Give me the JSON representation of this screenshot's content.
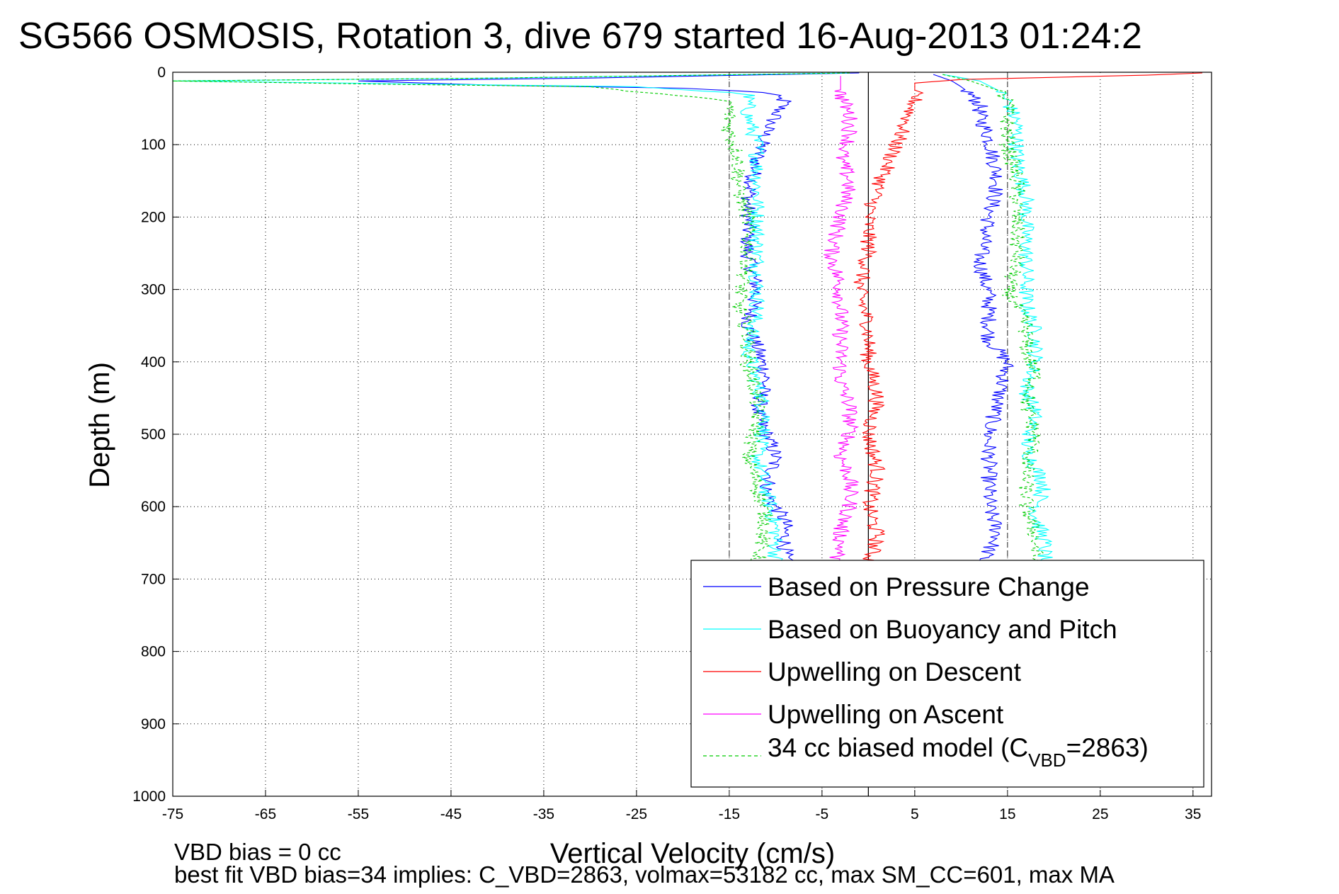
{
  "chart_data": {
    "type": "line",
    "title": "SG566 OSMOSIS, Rotation 3, dive 679 started 16-Aug-2013 01:24:2",
    "xlabel": "Vertical Velocity (cm/s)",
    "ylabel": "Depth (m)",
    "xlim": [
      -75,
      37
    ],
    "ylim": [
      0,
      1000
    ],
    "y_reversed": true,
    "grid": true,
    "x_ticks": [
      "-75",
      "-65",
      "-55",
      "-45",
      "-35",
      "-25",
      "-15",
      "-5",
      "5",
      "15",
      "25",
      "35"
    ],
    "y_ticks": [
      "0",
      "100",
      "200",
      "300",
      "400",
      "500",
      "600",
      "700",
      "800",
      "900",
      "1000"
    ],
    "reference_lines": [
      {
        "x": -15,
        "style": "dashed",
        "color": "#555555"
      },
      {
        "x": 0,
        "style": "solid",
        "color": "#000000"
      },
      {
        "x": 15,
        "style": "dashed",
        "color": "#555555"
      }
    ],
    "legend_position": "bottom-right",
    "series": [
      {
        "name": "Based on Pressure Change",
        "color": "#0000ff",
        "style": "solid",
        "branches": [
          {
            "x": [
              -1,
              -30,
              -55,
              -40,
              -20,
              -11,
              -9,
              -11,
              -12,
              -13,
              -13,
              -12,
              -13,
              -12,
              -11,
              -12,
              -10,
              -11,
              -9,
              -9,
              -9
            ],
            "y": [
              1,
              8,
              12,
              18,
              22,
              28,
              40,
              80,
              120,
              180,
              250,
              300,
              350,
              380,
              420,
              470,
              530,
              580,
              620,
              660,
              680
            ]
          },
          {
            "x": [
              7,
              9,
              10,
              11,
              12,
              12,
              13,
              14,
              13,
              12,
              13,
              13,
              15,
              14,
              13,
              13,
              13,
              13,
              14,
              12
            ],
            "y": [
              3,
              12,
              20,
              30,
              45,
              60,
              90,
              150,
              200,
              260,
              310,
              370,
              400,
              450,
              500,
              530,
              560,
              600,
              640,
              680
            ]
          }
        ]
      },
      {
        "name": "Based on Buoyancy and Pitch",
        "color": "#00ffff",
        "style": "solid",
        "branches": [
          {
            "x": [
              -2,
              -40,
              -75,
              -50,
              -25,
              -13,
              -13,
              -12,
              -12,
              -12,
              -12,
              -13,
              -12,
              -11,
              -12,
              -11,
              -10,
              -10
            ],
            "y": [
              1,
              8,
              12,
              16,
              20,
              30,
              60,
              100,
              170,
              250,
              330,
              380,
              430,
              480,
              530,
              580,
              630,
              680
            ]
          },
          {
            "x": [
              8,
              12,
              14,
              15,
              16,
              16,
              17,
              17,
              17,
              17,
              18,
              18,
              17,
              18,
              17,
              19,
              18,
              19,
              19
            ],
            "y": [
              3,
              12,
              25,
              40,
              70,
              120,
              170,
              220,
              270,
              320,
              360,
              400,
              440,
              470,
              520,
              570,
              610,
              650,
              680
            ]
          }
        ]
      },
      {
        "name": "Upwelling on Descent",
        "color": "#ff0000",
        "style": "solid",
        "branches": [
          {
            "x": [
              36,
              30,
              20,
              10,
              5,
              5,
              4,
              3,
              2,
              1,
              0,
              0,
              -1,
              0,
              0,
              1,
              0,
              1,
              0,
              1,
              0
            ],
            "y": [
              1,
              4,
              7,
              10,
              15,
              40,
              70,
              100,
              130,
              160,
              200,
              250,
              300,
              350,
              400,
              450,
              500,
              550,
              600,
              640,
              680
            ]
          }
        ]
      },
      {
        "name": "Upwelling on Ascent",
        "color": "#ff00ff",
        "style": "solid",
        "branches": [
          {
            "x": [
              -3,
              -3,
              -2,
              -2,
              -3,
              -2,
              -3,
              -4,
              -3,
              -3,
              -3,
              -3,
              -2,
              -2,
              -3,
              -2,
              -2,
              -3,
              -3,
              -4
            ],
            "y": [
              5,
              30,
              60,
              90,
              120,
              150,
              200,
              250,
              300,
              350,
              400,
              430,
              460,
              500,
              530,
              560,
              600,
              630,
              660,
              680
            ]
          }
        ]
      },
      {
        "name": "34 cc biased model",
        "color": "#00cc00",
        "style": "dashed",
        "branches": [
          {
            "x": [
              -2,
              -40,
              -75,
              -55,
              -30,
              -15,
              -15,
              -14,
              -14,
              -13,
              -13,
              -14,
              -13,
              -13,
              -12,
              -12,
              -13,
              -12,
              -11,
              -12
            ],
            "y": [
              1,
              8,
              12,
              16,
              20,
              40,
              80,
              120,
              160,
              200,
              260,
              320,
              360,
              400,
              450,
              490,
              530,
              570,
              620,
              680
            ]
          },
          {
            "x": [
              8,
              11,
              14,
              15,
              15,
              15,
              16,
              16,
              16,
              15,
              17,
              17,
              18,
              17,
              18,
              17,
              17,
              18,
              18
            ],
            "y": [
              3,
              12,
              25,
              40,
              70,
              100,
              150,
              200,
              260,
              300,
              350,
              380,
              420,
              460,
              500,
              550,
              600,
              640,
              680
            ]
          }
        ]
      }
    ]
  },
  "legend": {
    "entries": [
      {
        "label": "Based on Pressure Change",
        "color": "#0000ff"
      },
      {
        "label": "Based on Buoyancy and Pitch",
        "color": "#00ffff"
      },
      {
        "label": "Upwelling on Descent",
        "color": "#ff0000"
      },
      {
        "label": "Upwelling on Ascent",
        "color": "#ff00ff"
      }
    ],
    "model_prefix": "34 cc biased model (C",
    "model_subscript": "VBD",
    "model_suffix": "=2863)"
  },
  "footer": {
    "line1": "VBD bias = 0 cc",
    "line2": "best fit VBD bias=34 implies: C_VBD=2863, volmax=53182 cc, max SM_CC=601, max MA"
  }
}
